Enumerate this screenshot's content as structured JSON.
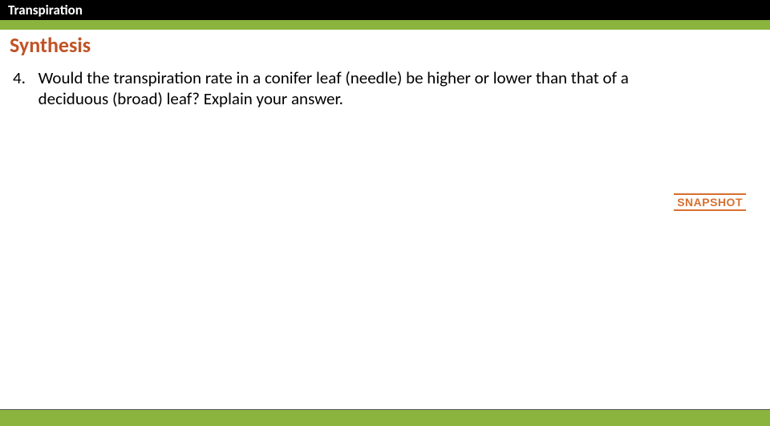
{
  "colors": {
    "green": "#8bb43f",
    "title": "#c05326",
    "snapshot_text": "#d86f2f",
    "snapshot_border": "#d86f2f"
  },
  "header": {
    "topic": "Transpiration"
  },
  "title": "Synthesis",
  "question": {
    "number": "4.",
    "text": "Would the transpiration rate in a conifer leaf (needle) be higher or lower than that of a deciduous (broad) leaf?  Explain your answer."
  },
  "badge": {
    "label": "SNAPSHOT"
  }
}
